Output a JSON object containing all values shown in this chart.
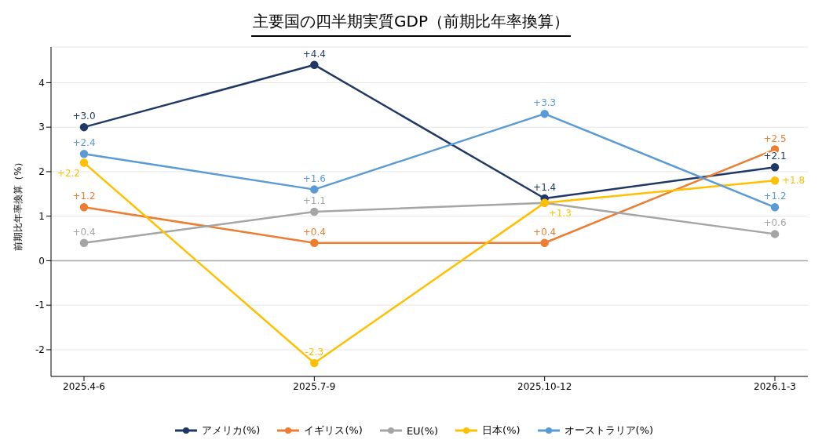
{
  "chart_data": {
    "type": "line",
    "title": "主要国の四半期実質GDP（前期比年率換算）",
    "ylabel": "前期比年率換算（%）",
    "categories": [
      "2025.4-6",
      "2025.7-9",
      "2025.10-12",
      "2026.1-3"
    ],
    "series": [
      {
        "name": "アメリカ(%)",
        "color": "#203864",
        "values": [
          3.0,
          4.4,
          1.4,
          2.1
        ],
        "value_labels": [
          "+3.0",
          "+4.4",
          "+1.4",
          "+2.1"
        ]
      },
      {
        "name": "イギリス(%)",
        "color": "#ed7d31",
        "values": [
          1.2,
          0.4,
          0.4,
          2.5
        ],
        "value_labels": [
          "+1.2",
          "+0.4",
          "+0.4",
          "+2.5"
        ]
      },
      {
        "name": "EU(%)",
        "color": "#a5a5a5",
        "values": [
          0.4,
          1.1,
          1.3,
          0.6
        ],
        "value_labels": [
          "+0.4",
          "+1.1",
          null,
          "+0.6"
        ]
      },
      {
        "name": "日本(%)",
        "color": "#ffc000",
        "values": [
          2.2,
          -2.3,
          1.3,
          1.8
        ],
        "value_labels": [
          "+2.2",
          "-2.3",
          "+1.3",
          "+1.8"
        ]
      },
      {
        "name": "オーストラリア(%)",
        "color": "#5b9bd5",
        "values": [
          2.4,
          1.6,
          3.3,
          1.2
        ],
        "value_labels": [
          "+2.4",
          "+1.6",
          "+3.3",
          "+1.2"
        ]
      }
    ],
    "ylim": [
      -2.6,
      4.8
    ],
    "yticks": [
      -2,
      -1,
      0,
      1,
      2,
      3,
      4
    ],
    "grid": "y",
    "legend": "bottom",
    "marker": "circle",
    "line_style": "solid",
    "ref_lines": [
      {
        "axis": "y",
        "value": 0,
        "color": "#a6a6a6"
      }
    ]
  }
}
